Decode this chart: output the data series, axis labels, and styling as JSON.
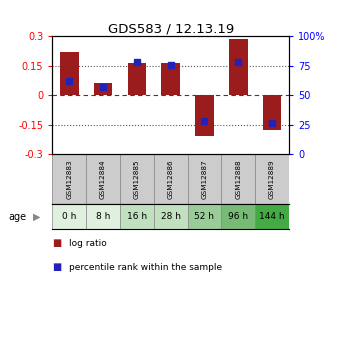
{
  "title": "GDS583 / 12.13.19",
  "samples": [
    "GSM12883",
    "GSM12884",
    "GSM12885",
    "GSM12886",
    "GSM12887",
    "GSM12888",
    "GSM12889"
  ],
  "ages": [
    "0 h",
    "8 h",
    "16 h",
    "28 h",
    "52 h",
    "96 h",
    "144 h"
  ],
  "log_ratios": [
    0.22,
    0.065,
    0.165,
    0.163,
    -0.205,
    0.285,
    -0.175
  ],
  "percentile_ranks": [
    62,
    57,
    78,
    76,
    28,
    78,
    27
  ],
  "ylim": [
    -0.3,
    0.3
  ],
  "yticks": [
    -0.3,
    -0.15,
    0,
    0.15,
    0.3
  ],
  "right_yticks": [
    0,
    25,
    50,
    75,
    100
  ],
  "bar_color": "#9b1c1c",
  "pct_color": "#2222bb",
  "hline_color": "#cc0000",
  "dotline_color": "#555555",
  "age_colors": [
    "#dff0df",
    "#dff0df",
    "#c0e0c0",
    "#c0e0c0",
    "#99cc99",
    "#77bb77",
    "#44aa44"
  ],
  "sample_bg": "#cccccc",
  "bar_width": 0.55,
  "pct_marker_size": 5,
  "legend_lr_label": "log ratio",
  "legend_pct_label": "percentile rank within the sample"
}
